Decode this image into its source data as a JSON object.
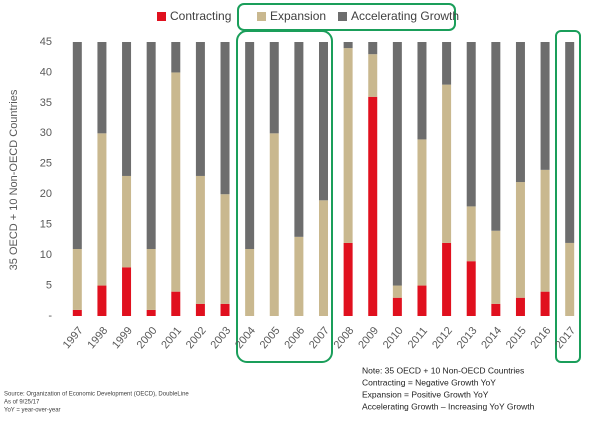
{
  "chart_data": {
    "type": "stacked_bar",
    "y_label": "35 OECD + 10 Non-OECD Countries",
    "categories": [
      "1997",
      "1998",
      "1999",
      "2000",
      "2001",
      "2002",
      "2003",
      "2004",
      "2005",
      "2006",
      "2007",
      "2008",
      "2009",
      "2010",
      "2011",
      "2012",
      "2013",
      "2014",
      "2015",
      "2016",
      "2017"
    ],
    "series": [
      {
        "name": "Contracting",
        "color": "#e0101e",
        "values": [
          1,
          5,
          8,
          1,
          4,
          2,
          2,
          0,
          0,
          0,
          0,
          12,
          36,
          3,
          5,
          12,
          9,
          2,
          3,
          4,
          0
        ]
      },
      {
        "name": "Expansion",
        "color": "#c9b88f",
        "values": [
          10,
          25,
          15,
          10,
          36,
          21,
          18,
          11,
          30,
          13,
          19,
          32,
          7,
          2,
          24,
          26,
          9,
          12,
          19,
          20,
          12
        ]
      },
      {
        "name": "Accelerating Growth",
        "color": "#6d6d6d",
        "values": [
          34,
          15,
          22,
          34,
          5,
          22,
          25,
          34,
          15,
          32,
          26,
          1,
          2,
          40,
          16,
          7,
          27,
          31,
          23,
          21,
          33
        ]
      }
    ],
    "ylim": [
      0,
      45
    ],
    "yticks": [
      {
        "value": 0,
        "label": "-"
      },
      5,
      10,
      15,
      20,
      25,
      30,
      35,
      40,
      45
    ],
    "grid": false,
    "source": [
      "Source: Organization of Economic Development (OECD), DoubleLine",
      "As of 9/25/17",
      "YoY = year-over-year"
    ],
    "note": [
      "Note: 35 OECD + 10 Non-OECD Countries",
      "Contracting = Negative Growth YoY",
      "Expansion = Positive Growth YoY",
      "Accelerating Growth – Increasing YoY Growth"
    ]
  }
}
